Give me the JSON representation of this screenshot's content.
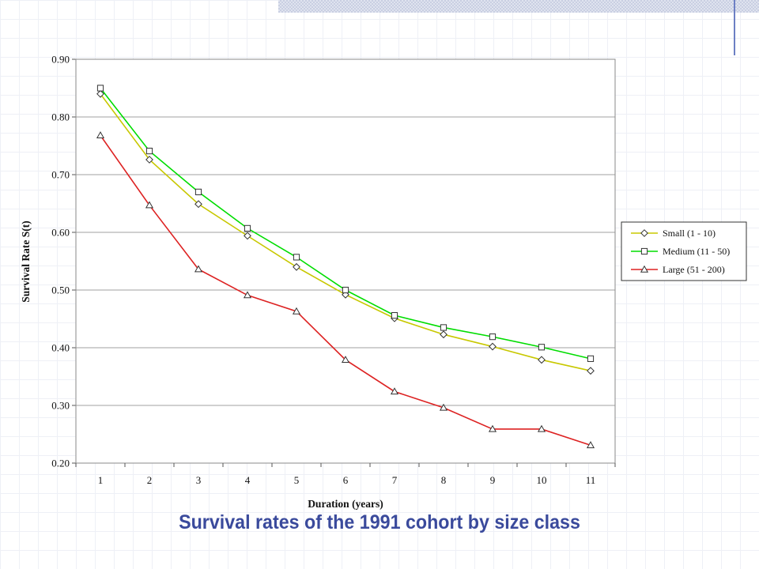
{
  "slide": {
    "caption": "Survival rates of the 1991 cohort by size class"
  },
  "chart_data": {
    "type": "line",
    "title": "",
    "xlabel": "Duration (years)",
    "ylabel": "Survival Rate S(t)",
    "categories": [
      "1",
      "2",
      "3",
      "4",
      "5",
      "6",
      "7",
      "8",
      "9",
      "10",
      "11"
    ],
    "ylim": [
      0.2,
      0.9
    ],
    "yticks": [
      "0.20",
      "0.30",
      "0.40",
      "0.50",
      "0.60",
      "0.70",
      "0.80",
      "0.90"
    ],
    "grid": "horizontal",
    "plot_background": "#ffffff",
    "legend_position": "right",
    "series": [
      {
        "name": "Small (1 - 10)",
        "color": "#c8c800",
        "marker": "diamond",
        "values": [
          0.84,
          0.726,
          0.649,
          0.594,
          0.54,
          0.492,
          0.451,
          0.423,
          0.402,
          0.379,
          0.36
        ]
      },
      {
        "name": "Medium (11 - 50)",
        "color": "#00dd00",
        "marker": "square",
        "values": [
          0.85,
          0.741,
          0.67,
          0.607,
          0.557,
          0.5,
          0.456,
          0.435,
          0.419,
          0.401,
          0.381
        ]
      },
      {
        "name": "Large (51 - 200)",
        "color": "#dd2222",
        "marker": "triangle",
        "values": [
          0.768,
          0.647,
          0.536,
          0.491,
          0.463,
          0.379,
          0.324,
          0.296,
          0.259,
          0.259,
          0.231
        ]
      }
    ]
  }
}
